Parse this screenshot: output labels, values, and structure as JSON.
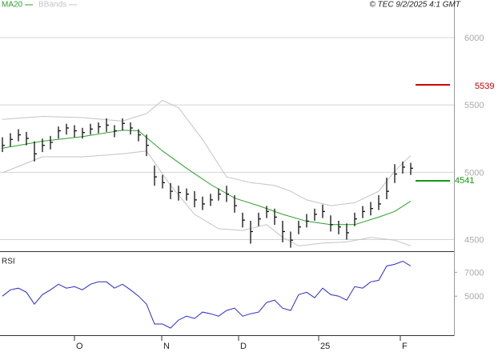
{
  "chart_data": [
    {
      "type": "ohlc",
      "ylim": [
        4420,
        6190
      ],
      "xlim": [
        -0.3,
        56.4
      ],
      "yticks": [
        4500,
        5000,
        5500,
        6000
      ],
      "grid": true,
      "copyright": "© TEC 9/2/2025 4:1 GMT",
      "bars": {
        "color": "#111111",
        "x": [
          0,
          1,
          2,
          3,
          4,
          5,
          6,
          7,
          8,
          9,
          10,
          11,
          12,
          13,
          14,
          15,
          16,
          17,
          18,
          19,
          20,
          21,
          22,
          23,
          24,
          25,
          26,
          27,
          28,
          29,
          30,
          31,
          32,
          33,
          34,
          35,
          36,
          37,
          38,
          39,
          40,
          41,
          42,
          43,
          44,
          45,
          46,
          47,
          48,
          49,
          50,
          51
        ],
        "high": [
          5260,
          5290,
          5320,
          5300,
          5230,
          5250,
          5270,
          5340,
          5360,
          5350,
          5330,
          5360,
          5370,
          5400,
          5350,
          5400,
          5370,
          5320,
          5280,
          5050,
          4980,
          4920,
          4900,
          4880,
          4860,
          4820,
          4840,
          4880,
          4900,
          4830,
          4700,
          4640,
          4700,
          4750,
          4730,
          4640,
          4560,
          4640,
          4690,
          4730,
          4760,
          4680,
          4640,
          4620,
          4700,
          4750,
          4780,
          4830,
          4960,
          5060,
          5080,
          5070
        ],
        "low": [
          5150,
          5190,
          5230,
          5200,
          5080,
          5150,
          5170,
          5250,
          5280,
          5260,
          5250,
          5280,
          5290,
          5300,
          5260,
          5310,
          5280,
          5230,
          5120,
          4900,
          4880,
          4800,
          4790,
          4790,
          4740,
          4720,
          4750,
          4790,
          4780,
          4700,
          4590,
          4470,
          4600,
          4660,
          4610,
          4480,
          4440,
          4540,
          4590,
          4640,
          4660,
          4560,
          4540,
          4500,
          4600,
          4660,
          4680,
          4720,
          4800,
          4920,
          4990,
          4980
        ],
        "close": [
          5200,
          5244,
          5278,
          5252,
          5137,
          5200,
          5222,
          5308,
          5329,
          5308,
          5295,
          5321,
          5338,
          5350,
          5308,
          5363,
          5329,
          5278,
          5200,
          4966,
          4923,
          4859,
          4850,
          4838,
          4795,
          4765,
          4795,
          4838,
          4838,
          4752,
          4645,
          4560,
          4654,
          4709,
          4667,
          4560,
          4496,
          4594,
          4637,
          4688,
          4709,
          4611,
          4594,
          4551,
          4654,
          4709,
          4731,
          4765,
          4859,
          4987,
          5038,
          5030
        ]
      },
      "series": [
        {
          "name": "MA20",
          "color": "#2ca02c",
          "x": [
            0,
            5,
            10,
            15,
            17,
            20,
            23,
            26,
            29,
            32,
            35,
            38,
            41,
            44,
            47,
            49,
            51
          ],
          "values": [
            5179,
            5231,
            5265,
            5312,
            5308,
            5158,
            5030,
            4910,
            4808,
            4752,
            4688,
            4637,
            4611,
            4611,
            4667,
            4709,
            4786
          ]
        },
        {
          "name": "BBands",
          "color": "#c4c4c4",
          "upper": {
            "x": [
              0,
              5,
              10,
              15,
              18,
              20,
              22,
              25,
              28,
              31,
              34,
              36,
              38,
              41,
              44,
              47,
              49,
              51
            ],
            "values": [
              5393,
              5415,
              5406,
              5380,
              5436,
              5534,
              5479,
              5244,
              4966,
              4923,
              4902,
              4859,
              4795,
              4752,
              4774,
              4859,
              5009,
              5124
            ]
          },
          "lower": {
            "x": [
              0,
              5,
              10,
              15,
              18,
              21,
              24,
              27,
              30,
              33,
              35,
              37,
              40,
              43,
              46,
              49,
              51
            ],
            "values": [
              4996,
              5115,
              5115,
              5137,
              5158,
              4902,
              4688,
              4581,
              4568,
              4611,
              4517,
              4453,
              4474,
              4483,
              4517,
              4496,
              4453
            ]
          }
        }
      ],
      "annotations": [
        {
          "text": "5539",
          "color": "#cc0000"
        },
        {
          "text": "4541",
          "color": "#119911"
        }
      ]
    },
    {
      "type": "line",
      "title": "RSI",
      "ylim": [
        18,
        85
      ],
      "xlim": [
        -0.3,
        56.4
      ],
      "yticks": [
        {
          "value": 50,
          "label": "5000"
        },
        {
          "value": 70,
          "label": "7000"
        }
      ],
      "xticks": [
        {
          "value": 9,
          "label": "O"
        },
        {
          "value": 19.9,
          "label": "N"
        },
        {
          "value": 29.5,
          "label": "D"
        },
        {
          "value": 39.5,
          "label": "25"
        },
        {
          "value": 49.7,
          "label": "F"
        }
      ],
      "series": [
        {
          "color": "#2a2acc",
          "x": [
            0,
            1,
            2,
            3,
            4,
            5,
            6,
            7,
            8,
            9,
            10,
            11,
            12,
            13,
            14,
            15,
            16,
            17,
            18,
            19,
            20,
            21,
            22,
            23,
            24,
            25,
            26,
            27,
            28,
            29,
            30,
            31,
            32,
            33,
            34,
            35,
            36,
            37,
            38,
            39,
            40,
            41,
            42,
            43,
            44,
            45,
            46,
            47,
            48,
            49,
            50,
            51
          ],
          "values": [
            50,
            55.3,
            56.7,
            53.3,
            43.3,
            51.3,
            55.3,
            60,
            56.7,
            58,
            55.3,
            60,
            62,
            62,
            56.7,
            60,
            55.3,
            50,
            43.3,
            26.7,
            26.7,
            23.3,
            30,
            33.3,
            31.3,
            36.7,
            35.3,
            33.3,
            38,
            40,
            33.3,
            35.3,
            36.7,
            44.7,
            46.7,
            40,
            38,
            51.3,
            53.3,
            48.7,
            56.7,
            51.3,
            50,
            46.7,
            58,
            56.7,
            62,
            63.3,
            75.3,
            76.7,
            79.3,
            75.3
          ]
        }
      ]
    }
  ]
}
